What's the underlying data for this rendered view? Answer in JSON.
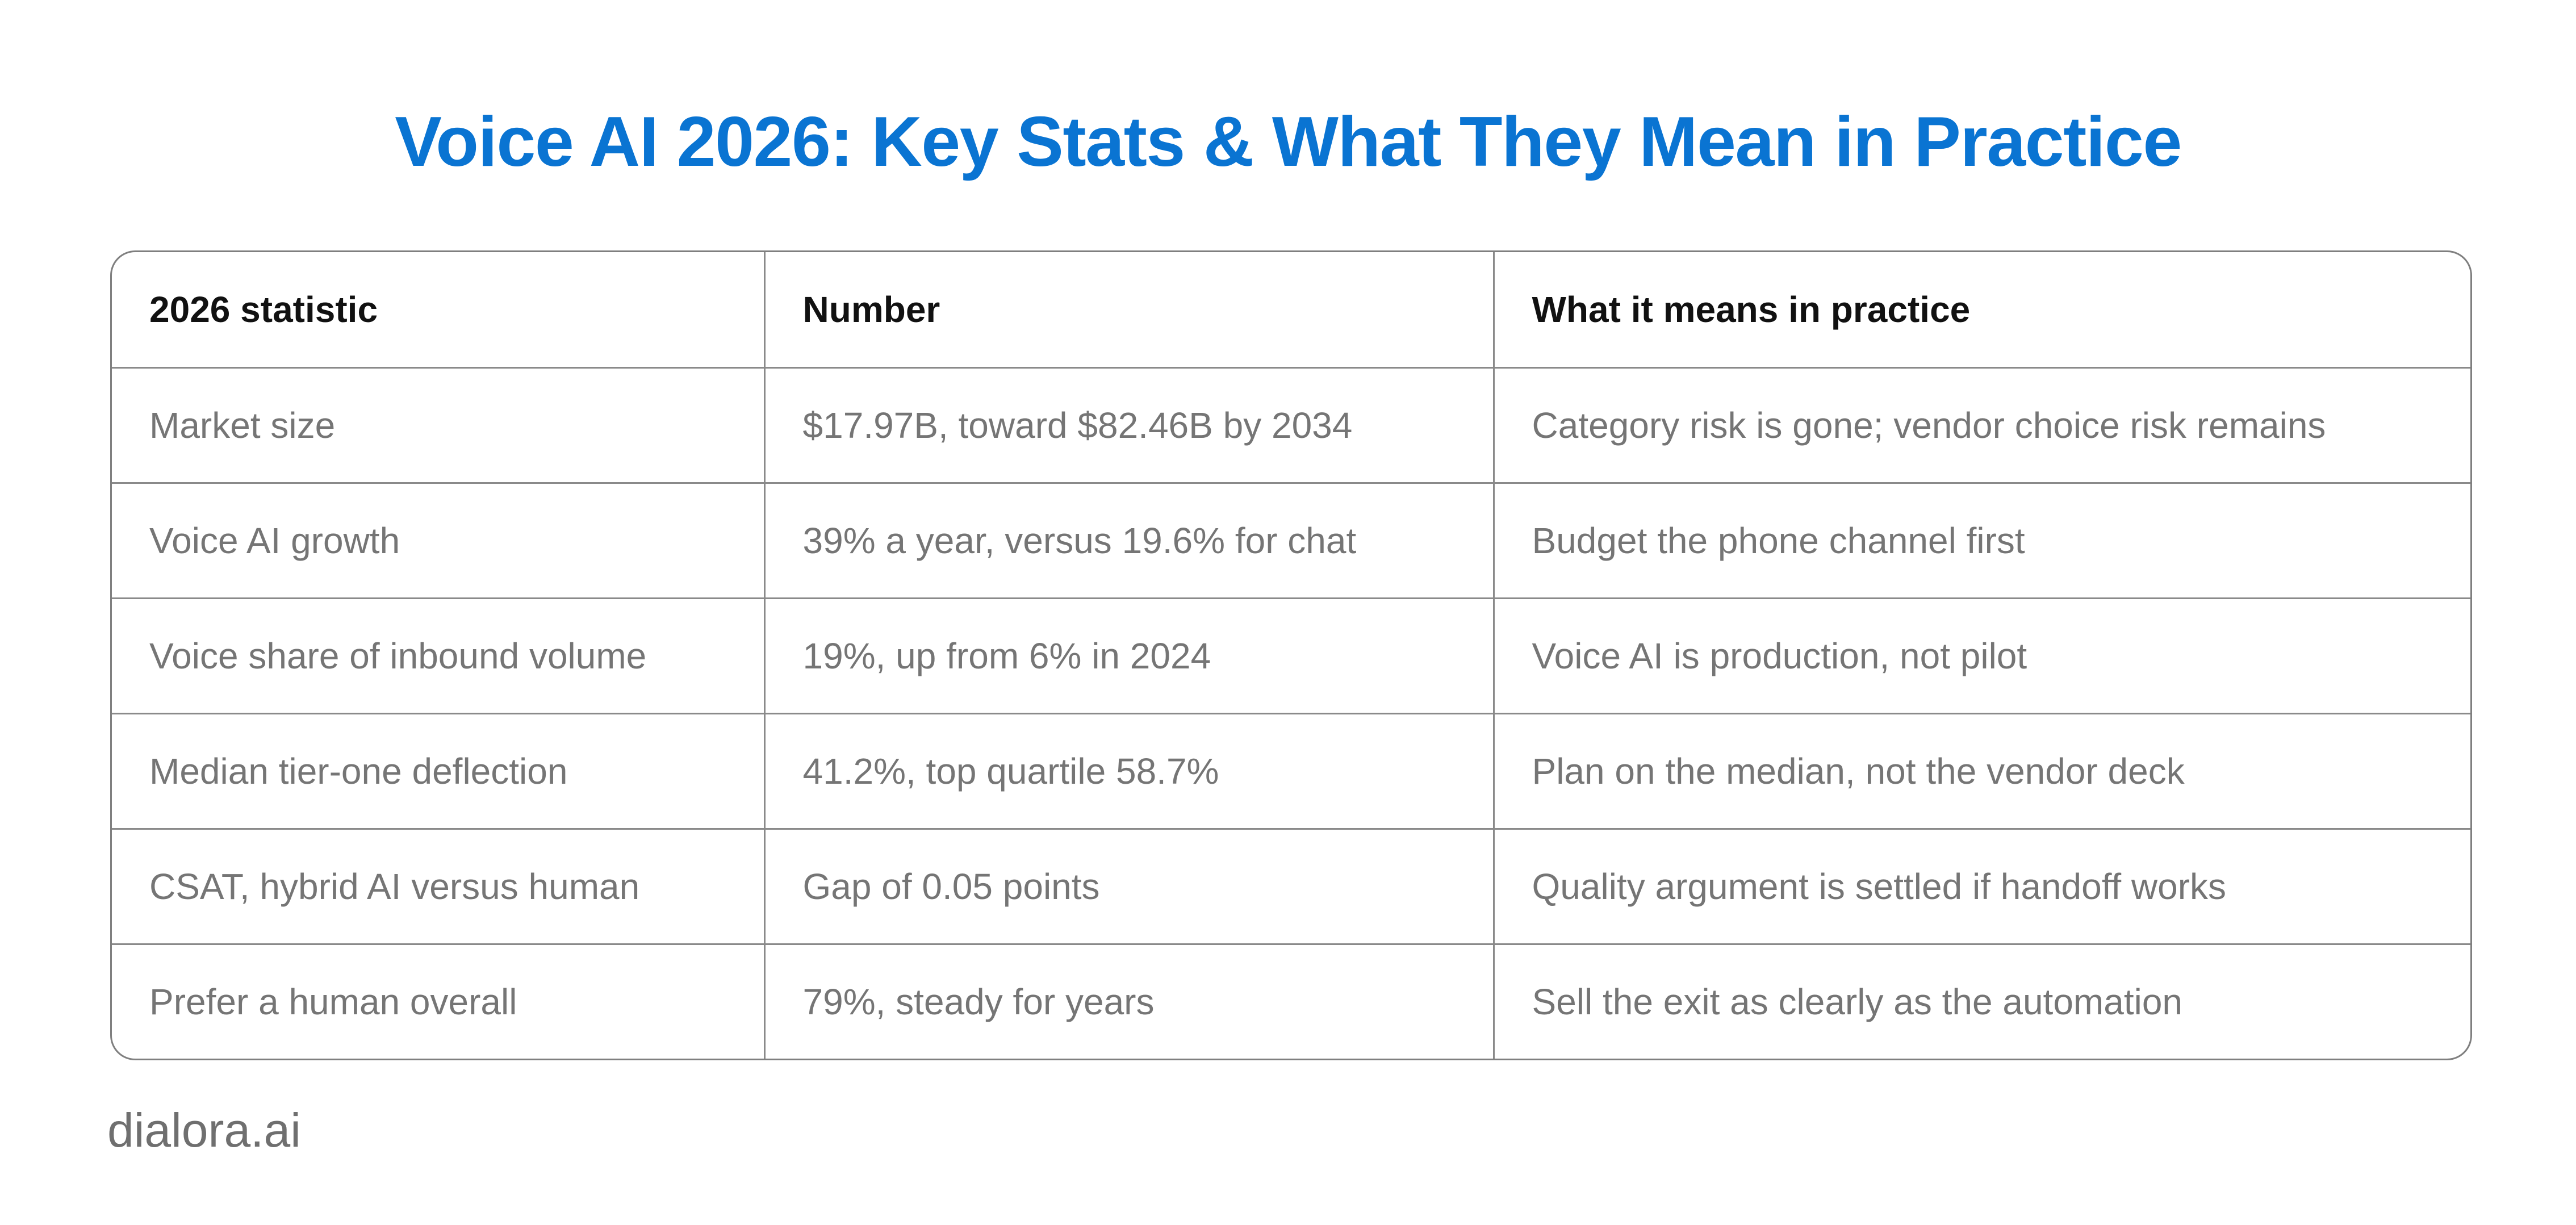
{
  "title": "Voice AI 2026: Key Stats & What They Mean in Practice",
  "table": {
    "headers": [
      "2026 statistic",
      "Number",
      "What it means in practice"
    ],
    "rows": [
      [
        "Market size",
        "$17.97B, toward $82.46B by 2034",
        "Category risk is gone; vendor choice risk remains"
      ],
      [
        "Voice AI growth",
        "39% a year, versus 19.6% for chat",
        "Budget the phone channel first"
      ],
      [
        "Voice share of inbound volume",
        "19%, up from 6% in 2024",
        "Voice AI is production, not pilot"
      ],
      [
        "Median tier-one deflection",
        "41.2%, top quartile 58.7%",
        "Plan on the median, not the vendor deck"
      ],
      [
        "CSAT, hybrid AI versus human",
        "Gap of 0.05 points",
        "Quality argument is settled if handoff works"
      ],
      [
        "Prefer a human overall",
        "79%, steady for years",
        "Sell the exit as clearly as the automation"
      ]
    ]
  },
  "footer": {
    "site": "dialora.ai"
  },
  "colors": {
    "title": "#0a74d2",
    "header_text": "#111111",
    "cell_text": "#757575",
    "border": "#8a8a8a",
    "footer_text": "#6f6f6f"
  }
}
